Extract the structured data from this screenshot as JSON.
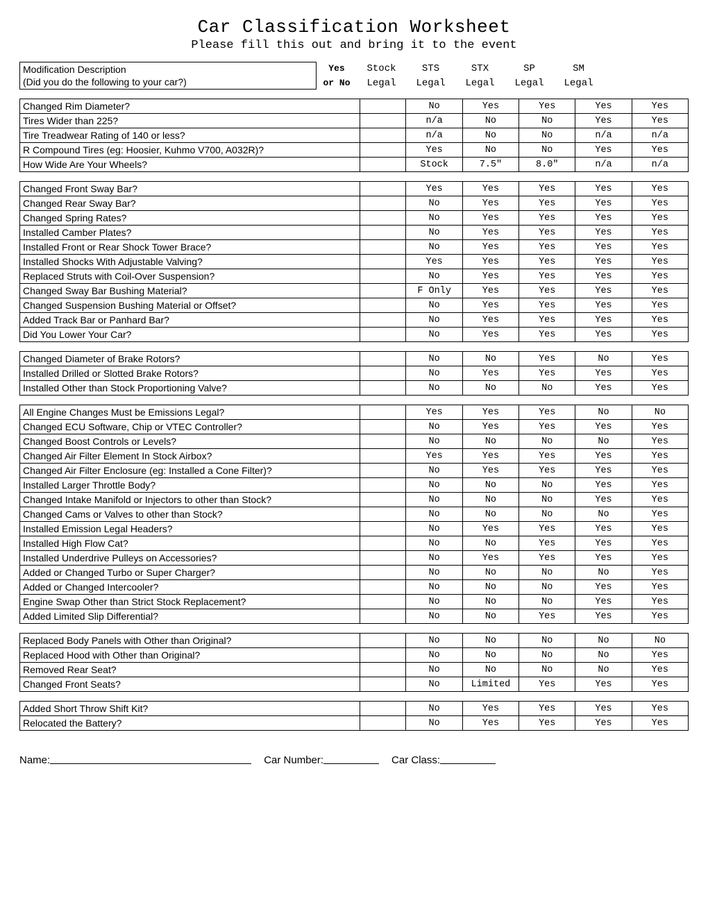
{
  "title": "Car Classification Worksheet",
  "subtitle": "Please fill this out and bring it to the event",
  "header": {
    "desc1": "Modification Description",
    "desc2": "(Did you do the following to your car?)",
    "yn1": "Yes",
    "yn2": "or No",
    "cols_top": [
      "Stock",
      "STS",
      "STX",
      "SP",
      "SM"
    ],
    "cols_bot": [
      "Legal",
      "Legal",
      "Legal",
      "Legal",
      "Legal"
    ]
  },
  "groups": [
    [
      {
        "d": "Changed Rim Diameter?",
        "v": [
          "No",
          "Yes",
          "Yes",
          "Yes",
          "Yes"
        ]
      },
      {
        "d": "Tires Wider than 225?",
        "v": [
          "n/a",
          "No",
          "No",
          "Yes",
          "Yes"
        ]
      },
      {
        "d": "Tire Treadwear Rating of 140 or less?",
        "v": [
          "n/a",
          "No",
          "No",
          "n/a",
          "n/a"
        ]
      },
      {
        "d": "R Compound Tires (eg: Hoosier, Kuhmo V700, A032R)?",
        "v": [
          "Yes",
          "No",
          "No",
          "Yes",
          "Yes"
        ]
      },
      {
        "d": "How Wide Are Your Wheels?",
        "v": [
          "Stock",
          "7.5\"",
          "8.0\"",
          "n/a",
          "n/a"
        ]
      }
    ],
    [
      {
        "d": "Changed Front Sway Bar?",
        "v": [
          "Yes",
          "Yes",
          "Yes",
          "Yes",
          "Yes"
        ]
      },
      {
        "d": "Changed Rear Sway Bar?",
        "v": [
          "No",
          "Yes",
          "Yes",
          "Yes",
          "Yes"
        ]
      },
      {
        "d": "Changed Spring Rates?",
        "v": [
          "No",
          "Yes",
          "Yes",
          "Yes",
          "Yes"
        ]
      },
      {
        "d": "Installed Camber Plates?",
        "v": [
          "No",
          "Yes",
          "Yes",
          "Yes",
          "Yes"
        ]
      },
      {
        "d": "Installed Front or Rear Shock Tower Brace?",
        "v": [
          "No",
          "Yes",
          "Yes",
          "Yes",
          "Yes"
        ]
      },
      {
        "d": "Installed Shocks With Adjustable Valving?",
        "v": [
          "Yes",
          "Yes",
          "Yes",
          "Yes",
          "Yes"
        ]
      },
      {
        "d": "Replaced Struts with Coil-Over Suspension?",
        "v": [
          "No",
          "Yes",
          "Yes",
          "Yes",
          "Yes"
        ]
      },
      {
        "d": "Changed Sway Bar Bushing Material?",
        "v": [
          "F Only",
          "Yes",
          "Yes",
          "Yes",
          "Yes"
        ]
      },
      {
        "d": "Changed Suspension Bushing Material or Offset?",
        "v": [
          "No",
          "Yes",
          "Yes",
          "Yes",
          "Yes"
        ]
      },
      {
        "d": "Added Track Bar or Panhard Bar?",
        "v": [
          "No",
          "Yes",
          "Yes",
          "Yes",
          "Yes"
        ]
      },
      {
        "d": "Did You Lower Your Car?",
        "v": [
          "No",
          "Yes",
          "Yes",
          "Yes",
          "Yes"
        ]
      }
    ],
    [
      {
        "d": "Changed Diameter of Brake Rotors?",
        "v": [
          "No",
          "No",
          "Yes",
          "No",
          "Yes"
        ]
      },
      {
        "d": "Installed Drilled or Slotted Brake Rotors?",
        "v": [
          "No",
          "Yes",
          "Yes",
          "Yes",
          "Yes"
        ]
      },
      {
        "d": "Installed Other than Stock Proportioning Valve?",
        "v": [
          "No",
          "No",
          "No",
          "Yes",
          "Yes"
        ]
      }
    ],
    [
      {
        "d": "All Engine Changes Must be Emissions Legal?",
        "v": [
          "Yes",
          "Yes",
          "Yes",
          "No",
          "No"
        ]
      },
      {
        "d": "Changed ECU Software, Chip or VTEC Controller?",
        "v": [
          "No",
          "Yes",
          "Yes",
          "Yes",
          "Yes"
        ]
      },
      {
        "d": "Changed Boost Controls or Levels?",
        "v": [
          "No",
          "No",
          "No",
          "No",
          "Yes"
        ]
      },
      {
        "d": "Changed Air Filter Element In Stock Airbox?",
        "v": [
          "Yes",
          "Yes",
          "Yes",
          "Yes",
          "Yes"
        ]
      },
      {
        "d": "Changed Air Filter Enclosure (eg: Installed a Cone Filter)?",
        "v": [
          "No",
          "Yes",
          "Yes",
          "Yes",
          "Yes"
        ]
      },
      {
        "d": "Installed Larger Throttle Body?",
        "v": [
          "No",
          "No",
          "No",
          "Yes",
          "Yes"
        ]
      },
      {
        "d": "Changed Intake Manifold or Injectors to other than Stock?",
        "v": [
          "No",
          "No",
          "No",
          "Yes",
          "Yes"
        ]
      },
      {
        "d": "Changed Cams or Valves to other than Stock?",
        "v": [
          "No",
          "No",
          "No",
          "No",
          "Yes"
        ]
      },
      {
        "d": "Installed Emission Legal Headers?",
        "v": [
          "No",
          "Yes",
          "Yes",
          "Yes",
          "Yes"
        ]
      },
      {
        "d": "Installed High Flow Cat?",
        "v": [
          "No",
          "No",
          "Yes",
          "Yes",
          "Yes"
        ]
      },
      {
        "d": "Installed Underdrive Pulleys on Accessories?",
        "v": [
          "No",
          "Yes",
          "Yes",
          "Yes",
          "Yes"
        ]
      },
      {
        "d": "Added or Changed Turbo or Super Charger?",
        "v": [
          "No",
          "No",
          "No",
          "No",
          "Yes"
        ]
      },
      {
        "d": "Added or Changed Intercooler?",
        "v": [
          "No",
          "No",
          "No",
          "Yes",
          "Yes"
        ]
      },
      {
        "d": "Engine Swap Other than Strict Stock Replacement?",
        "v": [
          "No",
          "No",
          "No",
          "Yes",
          "Yes"
        ]
      },
      {
        "d": "Added Limited Slip Differential?",
        "v": [
          "No",
          "No",
          "Yes",
          "Yes",
          "Yes"
        ]
      }
    ],
    [
      {
        "d": "Replaced Body Panels with Other than Original?",
        "v": [
          "No",
          "No",
          "No",
          "No",
          "No"
        ]
      },
      {
        "d": "Replaced Hood with Other than Original?",
        "v": [
          "No",
          "No",
          "No",
          "No",
          "Yes"
        ]
      },
      {
        "d": "Removed Rear Seat?",
        "v": [
          "No",
          "No",
          "No",
          "No",
          "Yes"
        ]
      },
      {
        "d": "Changed Front Seats?",
        "v": [
          "No",
          "Limited",
          "Yes",
          "Yes",
          "Yes"
        ]
      }
    ],
    [
      {
        "d": "Added Short Throw Shift Kit?",
        "v": [
          "No",
          "Yes",
          "Yes",
          "Yes",
          "Yes"
        ]
      },
      {
        "d": "Relocated the Battery?",
        "v": [
          "No",
          "Yes",
          "Yes",
          "Yes",
          "Yes"
        ]
      }
    ]
  ],
  "footer": {
    "name": "Name:",
    "carnum": "Car Number:",
    "carclass": "Car Class:"
  }
}
